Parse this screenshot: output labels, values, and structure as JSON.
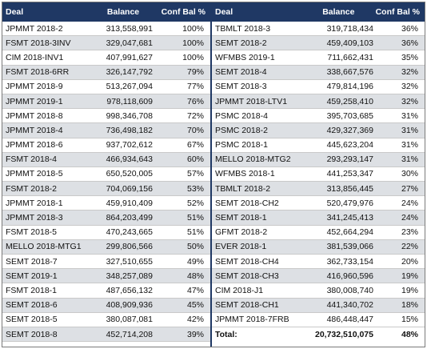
{
  "headers": {
    "deal": "Deal",
    "balance": "Balance",
    "conf": "Conf Bal %"
  },
  "left_rows": [
    {
      "deal": "JPMMT 2018-2",
      "balance": "313,558,991",
      "conf": "100%"
    },
    {
      "deal": "FSMT 2018-3INV",
      "balance": "329,047,681",
      "conf": "100%"
    },
    {
      "deal": "CIM 2018-INV1",
      "balance": "407,991,627",
      "conf": "100%"
    },
    {
      "deal": "FSMT 2018-6RR",
      "balance": "326,147,792",
      "conf": "79%"
    },
    {
      "deal": "JPMMT 2018-9",
      "balance": "513,267,094",
      "conf": "77%"
    },
    {
      "deal": "JPMMT 2019-1",
      "balance": "978,118,609",
      "conf": "76%"
    },
    {
      "deal": "JPMMT 2018-8",
      "balance": "998,346,708",
      "conf": "72%"
    },
    {
      "deal": "JPMMT 2018-4",
      "balance": "736,498,182",
      "conf": "70%"
    },
    {
      "deal": "JPMMT 2018-6",
      "balance": "937,702,612",
      "conf": "67%"
    },
    {
      "deal": "FSMT 2018-4",
      "balance": "466,934,643",
      "conf": "60%"
    },
    {
      "deal": "JPMMT 2018-5",
      "balance": "650,520,005",
      "conf": "57%"
    },
    {
      "deal": "FSMT 2018-2",
      "balance": "704,069,156",
      "conf": "53%"
    },
    {
      "deal": "JPMMT 2018-1",
      "balance": "459,910,409",
      "conf": "52%"
    },
    {
      "deal": "JPMMT 2018-3",
      "balance": "864,203,499",
      "conf": "51%"
    },
    {
      "deal": "FSMT 2018-5",
      "balance": "470,243,665",
      "conf": "51%"
    },
    {
      "deal": "MELLO 2018-MTG1",
      "balance": "299,806,566",
      "conf": "50%"
    },
    {
      "deal": "SEMT 2018-7",
      "balance": "327,510,655",
      "conf": "49%"
    },
    {
      "deal": "SEMT 2019-1",
      "balance": "348,257,089",
      "conf": "48%"
    },
    {
      "deal": "FSMT 2018-1",
      "balance": "487,656,132",
      "conf": "47%"
    },
    {
      "deal": "SEMT 2018-6",
      "balance": "408,909,936",
      "conf": "45%"
    },
    {
      "deal": "SEMT 2018-5",
      "balance": "380,087,081",
      "conf": "42%"
    },
    {
      "deal": "SEMT 2018-8",
      "balance": "452,714,208",
      "conf": "39%"
    }
  ],
  "right_rows": [
    {
      "deal": "TBMLT 2018-3",
      "balance": "319,718,434",
      "conf": "36%"
    },
    {
      "deal": "SEMT 2018-2",
      "balance": "459,409,103",
      "conf": "36%"
    },
    {
      "deal": "WFMBS 2019-1",
      "balance": "711,662,431",
      "conf": "35%"
    },
    {
      "deal": "SEMT 2018-4",
      "balance": "338,667,576",
      "conf": "32%"
    },
    {
      "deal": "SEMT 2018-3",
      "balance": "479,814,196",
      "conf": "32%"
    },
    {
      "deal": "JPMMT 2018-LTV1",
      "balance": "459,258,410",
      "conf": "32%"
    },
    {
      "deal": "PSMC 2018-4",
      "balance": "395,703,685",
      "conf": "31%"
    },
    {
      "deal": "PSMC 2018-2",
      "balance": "429,327,369",
      "conf": "31%"
    },
    {
      "deal": "PSMC 2018-1",
      "balance": "445,623,204",
      "conf": "31%"
    },
    {
      "deal": "MELLO 2018-MTG2",
      "balance": "293,293,147",
      "conf": "31%"
    },
    {
      "deal": "WFMBS 2018-1",
      "balance": "441,253,347",
      "conf": "30%"
    },
    {
      "deal": "TBMLT 2018-2",
      "balance": "313,856,445",
      "conf": "27%"
    },
    {
      "deal": "SEMT 2018-CH2",
      "balance": "520,479,976",
      "conf": "24%"
    },
    {
      "deal": "SEMT 2018-1",
      "balance": "341,245,413",
      "conf": "24%"
    },
    {
      "deal": "GFMT 2018-2",
      "balance": "452,664,294",
      "conf": "23%"
    },
    {
      "deal": "EVER 2018-1",
      "balance": "381,539,066",
      "conf": "22%"
    },
    {
      "deal": "SEMT 2018-CH4",
      "balance": "362,733,154",
      "conf": "20%"
    },
    {
      "deal": "SEMT 2018-CH3",
      "balance": "416,960,596",
      "conf": "19%"
    },
    {
      "deal": "CIM 2018-J1",
      "balance": "380,008,740",
      "conf": "19%"
    },
    {
      "deal": "SEMT 2018-CH1",
      "balance": "441,340,702",
      "conf": "18%"
    },
    {
      "deal": "JPMMT 2018-7FRB",
      "balance": "486,448,447",
      "conf": "15%"
    }
  ],
  "total": {
    "label": "Total:",
    "balance": "20,732,510,075",
    "conf": "48%"
  }
}
